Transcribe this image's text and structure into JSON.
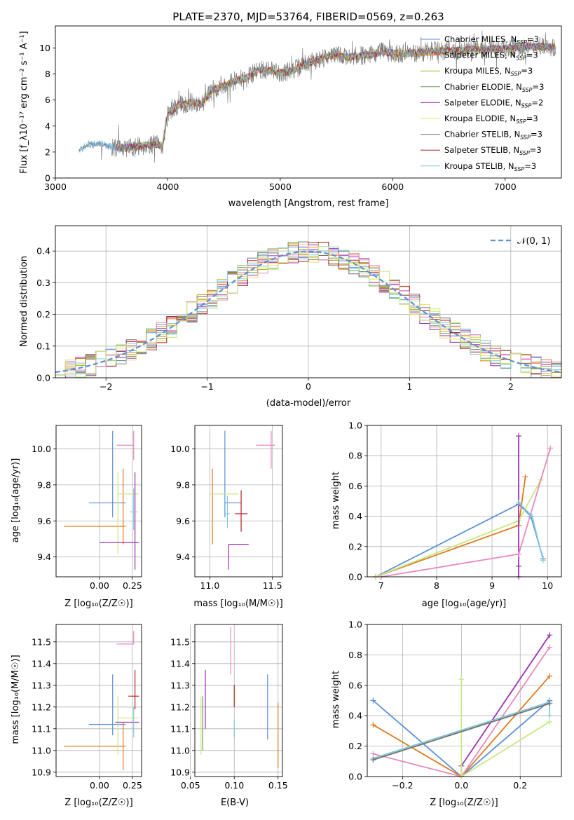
{
  "colors": {
    "palette": [
      "#5b8fd9",
      "#e07b20",
      "#b8b020",
      "#6a9a5a",
      "#9b30b0",
      "#e8e060",
      "#707070",
      "#b02020",
      "#80c8d8",
      "#e888c0",
      "#c8e880"
    ]
  },
  "chart_data": [
    {
      "id": "spectrum",
      "type": "line",
      "title": "PLATE=2370, MJD=53764, FIBERID=0569, z=0.263",
      "xlabel": "wavelength [Angstrom, rest frame]",
      "ylabel": "Flux [f_λ10⁻¹⁷ erg cm⁻² s⁻¹ A⁻¹]",
      "xlim": [
        3000,
        7500
      ],
      "ylim": [
        0,
        11.7
      ],
      "xticks": [
        "3000",
        "4000",
        "5000",
        "6000",
        "7000"
      ],
      "yticks": [
        "0",
        "2",
        "4",
        "6",
        "8",
        "10"
      ],
      "grid": false,
      "legend_position": "top-right",
      "data_start": 3210,
      "data_end": 7450,
      "continuum": {
        "x": [
          3210,
          3300,
          3400,
          3500,
          3600,
          3700,
          3800,
          3900,
          3950,
          4000,
          4100,
          4200,
          4300,
          4400,
          4500,
          4600,
          4700,
          4800,
          4900,
          5000,
          5100,
          5200,
          5300,
          5400,
          5500,
          5600,
          5700,
          5800,
          5900,
          6000,
          6200,
          6400,
          6600,
          6800,
          7000,
          7200,
          7400
        ],
        "y": [
          2.2,
          2.6,
          2.6,
          2.4,
          2.3,
          2.4,
          2.5,
          2.6,
          2.4,
          4.9,
          5.6,
          5.8,
          5.7,
          6.8,
          7.1,
          7.5,
          7.7,
          8.3,
          8.3,
          8.1,
          8.2,
          8.7,
          9.0,
          9.3,
          9.5,
          9.3,
          9.4,
          9.5,
          9.7,
          9.6,
          9.6,
          9.8,
          9.8,
          9.9,
          10.0,
          10.1,
          10.1
        ]
      },
      "series": [
        {
          "name": "Chabrier MILES, N_SSP=3"
        },
        {
          "name": "Salpeter MILES, N_SSP=3"
        },
        {
          "name": "Kroupa MILES, N_SSP=3"
        },
        {
          "name": "Chabrier ELODIE, N_SSP=3"
        },
        {
          "name": "Salpeter ELODIE, N_SSP=2"
        },
        {
          "name": "Kroupa ELODIE, N_SSP=3"
        },
        {
          "name": "Chabrier STELIB, N_SSP=3"
        },
        {
          "name": "Salpeter STELIB, N_SSP=3"
        },
        {
          "name": "Kroupa STELIB, N_SSP=3"
        }
      ]
    },
    {
      "id": "residuals",
      "type": "histogram",
      "xlabel": "(data-model)/error",
      "ylabel": "Normed distribution",
      "xlim": [
        -2.5,
        2.5
      ],
      "ylim": [
        0,
        0.48
      ],
      "xticks": [
        "−2",
        "−1",
        "0",
        "1",
        "2"
      ],
      "yticks": [
        "0.0",
        "0.1",
        "0.2",
        "0.3",
        "0.4"
      ],
      "grid": true,
      "legend": "𝒩(0, 1)",
      "legend_position": "top-right",
      "bin_width": 0.1
    },
    {
      "id": "age_vs_Z",
      "type": "errorbar",
      "xlabel": "Z [log₁₀(Z/Z☉)]",
      "ylabel": "age  [log₁₀(age/yr)]",
      "xlim": [
        -0.33,
        0.32
      ],
      "ylim": [
        9.29,
        10.13
      ],
      "xticks": [
        "0.00",
        "0.25"
      ],
      "xtick_values": [
        0,
        0.25
      ],
      "yticks": [
        "9.4",
        "9.6",
        "9.8",
        "10.0"
      ],
      "ytick_values": [
        9.4,
        9.6,
        9.8,
        10.0
      ],
      "grid": true,
      "points": [
        {
          "x": 0.1,
          "y": 9.7,
          "xerr": [
            0.18,
            0.1
          ],
          "yerr": [
            0.08,
            0.4
          ],
          "c": 0
        },
        {
          "x": -0.02,
          "y": 9.57,
          "xerr": [
            0.25,
            0.22
          ],
          "yerr": [
            0.0,
            0.0
          ],
          "c": 1
        },
        {
          "x": 0.18,
          "y": 9.57,
          "xerr": [
            0.0,
            0.0
          ],
          "yerr": [
            0.1,
            0.32
          ],
          "c": 1
        },
        {
          "x": 0.14,
          "y": 9.75,
          "xerr": [
            0.0,
            0.16
          ],
          "yerr": [
            0.33,
            0.12
          ],
          "c": 10
        },
        {
          "x": 0.12,
          "y": 9.48,
          "xerr": [
            0.12,
            0.18
          ],
          "yerr": [
            0.0,
            0.0
          ],
          "c": 4
        },
        {
          "x": 0.26,
          "y": 10.02,
          "xerr": [
            0.13,
            0.0
          ],
          "yerr": [
            0.08,
            0.08
          ],
          "c": 9
        },
        {
          "x": 0.27,
          "y": 9.47,
          "xerr": [
            0.0,
            0.0
          ],
          "yerr": [
            0.14,
            0.4
          ],
          "c": 4
        },
        {
          "x": 0.26,
          "y": 9.65,
          "xerr": [
            0.03,
            0.03
          ],
          "yerr": [
            0.1,
            0.13
          ],
          "c": 8
        },
        {
          "x": 0.23,
          "y": 9.75,
          "xerr": [
            0.0,
            0.0
          ],
          "yerr": [
            0.0,
            0.0
          ],
          "c": 3
        }
      ]
    },
    {
      "id": "age_vs_mass",
      "type": "errorbar",
      "xlabel": "mass [log₁₀(M/M☉)]",
      "ylabel": "",
      "xlim": [
        10.88,
        11.58
      ],
      "ylim": [
        9.29,
        10.13
      ],
      "xticks": [
        "11.0",
        "11.5"
      ],
      "xtick_values": [
        11.0,
        11.5
      ],
      "yticks": [
        "9.4",
        "9.6",
        "9.8",
        "10.0"
      ],
      "ytick_values": [
        9.4,
        9.6,
        9.8,
        10.0
      ],
      "grid": true,
      "points": [
        {
          "x": 11.12,
          "y": 9.7,
          "xerr": [
            0.0,
            0.13
          ],
          "yerr": [
            0.08,
            0.4
          ],
          "c": 0
        },
        {
          "x": 11.02,
          "y": 9.57,
          "xerr": [
            0.0,
            0.0
          ],
          "yerr": [
            0.1,
            0.32
          ],
          "c": 1
        },
        {
          "x": 11.07,
          "y": 9.75,
          "xerr": [
            0.07,
            0.16
          ],
          "yerr": [
            0.0,
            0.0
          ],
          "c": 10
        },
        {
          "x": 11.15,
          "y": 9.47,
          "xerr": [
            0.0,
            0.16
          ],
          "yerr": [
            0.14,
            0.0
          ],
          "c": 4
        },
        {
          "x": 11.25,
          "y": 9.64,
          "xerr": [
            0.05,
            0.05
          ],
          "yerr": [
            0.1,
            0.13
          ],
          "c": 7
        },
        {
          "x": 11.49,
          "y": 10.02,
          "xerr": [
            0.12,
            0.03
          ],
          "yerr": [
            0.13,
            0.08
          ],
          "c": 9
        },
        {
          "x": 11.14,
          "y": 9.64,
          "xerr": [
            0.02,
            0.02
          ],
          "yerr": [
            0.08,
            0.1
          ],
          "c": 8
        }
      ]
    },
    {
      "id": "weight_vs_age",
      "type": "line",
      "xlabel": "age  [log₁₀(age/yr)]",
      "ylabel": "mass weight",
      "xlim": [
        6.75,
        10.25
      ],
      "ylim": [
        0,
        1.0
      ],
      "xticks": [
        "7",
        "8",
        "9",
        "10"
      ],
      "xtick_values": [
        7,
        8,
        9,
        10
      ],
      "yticks": [
        "0.0",
        "0.2",
        "0.4",
        "0.6",
        "0.8",
        "1.0"
      ],
      "ytick_values": [
        0,
        0.2,
        0.4,
        0.6,
        0.8,
        1.0
      ],
      "grid": true,
      "series": [
        {
          "c": 0,
          "x": [
            6.9,
            9.48,
            9.7,
            9.92
          ],
          "y": [
            0.0,
            0.48,
            0.4,
            0.12
          ]
        },
        {
          "c": 1,
          "x": [
            6.9,
            9.48,
            9.6
          ],
          "y": [
            0.0,
            0.34,
            0.66
          ]
        },
        {
          "c": 10,
          "x": [
            6.9,
            9.48,
            9.88
          ],
          "y": [
            0.0,
            0.37,
            0.64
          ]
        },
        {
          "c": 4,
          "x": [
            9.48,
            9.48,
            9.48
          ],
          "y": [
            0.07,
            0.93,
            0.0
          ]
        },
        {
          "c": 9,
          "x": [
            7.0,
            9.48,
            10.05
          ],
          "y": [
            0.0,
            0.15,
            0.85
          ]
        },
        {
          "c": 8,
          "x": [
            9.48,
            9.72,
            9.92
          ],
          "y": [
            0.49,
            0.4,
            0.11
          ]
        }
      ]
    },
    {
      "id": "mass_vs_Z",
      "type": "errorbar",
      "xlabel": "Z [log₁₀(Z/Z☉)]",
      "ylabel": "mass [log₁₀(M/M☉)]",
      "xlim": [
        -0.33,
        0.32
      ],
      "ylim": [
        10.88,
        11.58
      ],
      "xticks": [
        "0.00",
        "0.25"
      ],
      "xtick_values": [
        0,
        0.25
      ],
      "yticks": [
        "10.9",
        "11.0",
        "11.1",
        "11.2",
        "11.3",
        "11.4",
        "11.5"
      ],
      "ytick_values": [
        10.9,
        11.0,
        11.1,
        11.2,
        11.3,
        11.4,
        11.5
      ],
      "grid": true,
      "points": [
        {
          "x": 0.1,
          "y": 11.12,
          "xerr": [
            0.18,
            0.1
          ],
          "yerr": [
            0.05,
            0.23
          ],
          "c": 0
        },
        {
          "x": -0.02,
          "y": 11.02,
          "xerr": [
            0.25,
            0.22
          ],
          "yerr": [
            0.0,
            0.0
          ],
          "c": 1
        },
        {
          "x": 0.18,
          "y": 11.02,
          "xerr": [
            0.0,
            0.0
          ],
          "yerr": [
            0.11,
            0.11
          ],
          "c": 1
        },
        {
          "x": 0.14,
          "y": 11.15,
          "xerr": [
            0.0,
            0.16
          ],
          "yerr": [
            0.17,
            0.1
          ],
          "c": 10
        },
        {
          "x": 0.12,
          "y": 11.13,
          "xerr": [
            0.0,
            0.18
          ],
          "yerr": [
            0.0,
            0.0
          ],
          "c": 4
        },
        {
          "x": 0.26,
          "y": 11.49,
          "xerr": [
            0.13,
            0.0
          ],
          "yerr": [
            0.0,
            0.06
          ],
          "c": 9
        },
        {
          "x": 0.27,
          "y": 11.25,
          "xerr": [
            0.05,
            0.03
          ],
          "yerr": [
            0.06,
            0.12
          ],
          "c": 7
        },
        {
          "x": 0.26,
          "y": 11.13,
          "xerr": [
            0.0,
            0.0
          ],
          "yerr": [
            0.07,
            0.07
          ],
          "c": 8
        }
      ]
    },
    {
      "id": "mass_vs_ebv",
      "type": "errorbar",
      "xlabel": "E(B-V)",
      "ylabel": "",
      "xlim": [
        0.055,
        0.155
      ],
      "ylim": [
        10.88,
        11.58
      ],
      "xticks": [
        "0.05",
        "0.10",
        "0.15"
      ],
      "xtick_values": [
        0.05,
        0.1,
        0.15
      ],
      "yticks": [
        "10.9",
        "11.0",
        "11.1",
        "11.2",
        "11.3",
        "11.4",
        "11.5"
      ],
      "ytick_values": [
        10.9,
        11.0,
        11.1,
        11.2,
        11.3,
        11.4,
        11.5
      ],
      "grid": true,
      "points": [
        {
          "x": 0.062,
          "y": 11.12,
          "xerr": [
            0,
            0
          ],
          "yerr": [
            0.14,
            0.13
          ],
          "c": 10
        },
        {
          "x": 0.064,
          "y": 11.12,
          "xerr": [
            0,
            0
          ],
          "yerr": [
            0.12,
            0.13
          ],
          "c": 3
        },
        {
          "x": 0.067,
          "y": 11.2,
          "xerr": [
            0,
            0
          ],
          "yerr": [
            0.1,
            0.17
          ],
          "c": 4
        },
        {
          "x": 0.096,
          "y": 11.45,
          "xerr": [
            0,
            0
          ],
          "yerr": [
            0.1,
            0.12
          ],
          "c": 9
        },
        {
          "x": 0.1,
          "y": 11.25,
          "xerr": [
            0,
            0
          ],
          "yerr": [
            0.05,
            0.05
          ],
          "c": 7
        },
        {
          "x": 0.1,
          "y": 11.1,
          "xerr": [
            0,
            0
          ],
          "yerr": [
            0.04,
            0.04
          ],
          "c": 8
        },
        {
          "x": 0.138,
          "y": 11.2,
          "xerr": [
            0,
            0
          ],
          "yerr": [
            0.15,
            0.15
          ],
          "c": 0
        },
        {
          "x": 0.15,
          "y": 11.07,
          "xerr": [
            0,
            0
          ],
          "yerr": [
            0.15,
            0.15
          ],
          "c": 1
        }
      ]
    },
    {
      "id": "weight_vs_Z",
      "type": "line",
      "xlabel": "Z [log₁₀(Z/Z☉)]",
      "ylabel": "mass weight",
      "xlim": [
        -0.32,
        0.34
      ],
      "ylim": [
        0,
        1.0
      ],
      "xticks": [
        "−0.2",
        "0.0",
        "0.2"
      ],
      "xtick_values": [
        -0.2,
        0.0,
        0.2
      ],
      "yticks": [
        "0.0",
        "0.2",
        "0.4",
        "0.6",
        "0.8",
        "1.0"
      ],
      "ytick_values": [
        0,
        0.2,
        0.4,
        0.6,
        0.8,
        1.0
      ],
      "grid": true,
      "series": [
        {
          "c": 0,
          "x": [
            -0.3,
            0.0,
            0.3
          ],
          "y": [
            0.5,
            0.0,
            0.5
          ]
        },
        {
          "c": 1,
          "x": [
            -0.3,
            0.0,
            0.3
          ],
          "y": [
            0.34,
            0.0,
            0.66
          ]
        },
        {
          "c": 9,
          "x": [
            -0.3,
            0.0,
            0.3
          ],
          "y": [
            0.15,
            0.0,
            0.85
          ]
        },
        {
          "c": 4,
          "x": [
            0.0,
            0.0,
            0.3
          ],
          "y": [
            0.0,
            0.07,
            0.93
          ]
        },
        {
          "c": 10,
          "x": [
            0.0,
            0.0,
            0.3
          ],
          "y": [
            0.64,
            0.0,
            0.36
          ]
        },
        {
          "c": 8,
          "x": [
            -0.3,
            0.3,
            0.3
          ],
          "y": [
            0.12,
            0.49,
            0.4
          ]
        },
        {
          "c": 6,
          "x": [
            -0.3,
            0.3
          ],
          "y": [
            0.11,
            0.48
          ]
        }
      ]
    }
  ]
}
